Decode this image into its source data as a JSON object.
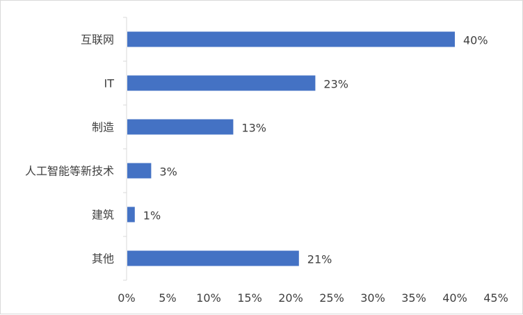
{
  "chart_data": {
    "type": "bar",
    "orientation": "horizontal",
    "categories": [
      "互联网",
      "IT",
      "制造",
      "人工智能等新技术",
      "建筑",
      "其他"
    ],
    "values": [
      40,
      23,
      13,
      3,
      1,
      21
    ],
    "data_labels": [
      "40%",
      "23%",
      "13%",
      "3%",
      "1%",
      "21%"
    ],
    "x_ticks": [
      "0%",
      "5%",
      "10%",
      "15%",
      "20%",
      "25%",
      "30%",
      "35%",
      "40%",
      "45%"
    ],
    "xlim": [
      0,
      45
    ],
    "title": "",
    "xlabel": "",
    "ylabel": "",
    "grid": false,
    "legend": "none",
    "bar_color": "#4472c4"
  }
}
